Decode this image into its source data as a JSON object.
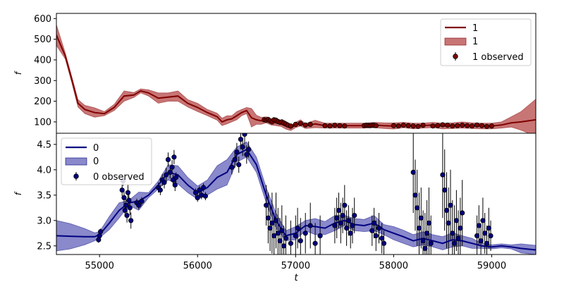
{
  "chart_data": [
    {
      "type": "line",
      "panel": "top",
      "xlabel": "",
      "ylabel": "f",
      "xlim": [
        54560,
        59450
      ],
      "ylim": [
        45,
        625
      ],
      "yticks": [
        100,
        200,
        300,
        400,
        500,
        600
      ],
      "legend_position": "upper right",
      "legend": [
        "1",
        "1",
        "1 observed"
      ],
      "colors": {
        "line": "#800000",
        "band": "#b03a3a",
        "band_alpha": 0.7,
        "points": "#800000"
      },
      "series": [
        {
          "name": "1",
          "role": "model-mean",
          "x": [
            54560,
            54650,
            54720,
            54780,
            54850,
            54950,
            55050,
            55150,
            55250,
            55350,
            55420,
            55500,
            55600,
            55700,
            55800,
            55900,
            56000,
            56100,
            56200,
            56250,
            56300,
            56350,
            56400,
            56450,
            56500,
            56550,
            56600,
            56650,
            56700,
            56750,
            56800,
            56850,
            56900,
            56950,
            57000,
            57050,
            57100,
            57200,
            57300,
            57400,
            57500,
            57600,
            57700,
            57800,
            57900,
            58000,
            58100,
            58200,
            58300,
            58400,
            58500,
            58600,
            58700,
            58800,
            58900,
            59000,
            59100,
            59200,
            59300,
            59450
          ],
          "y": [
            520,
            420,
            300,
            190,
            160,
            145,
            140,
            170,
            225,
            230,
            250,
            240,
            215,
            220,
            225,
            190,
            170,
            145,
            125,
            100,
            110,
            115,
            130,
            145,
            155,
            120,
            110,
            105,
            110,
            100,
            95,
            90,
            80,
            70,
            85,
            95,
            80,
            90,
            82,
            82,
            82,
            82,
            82,
            85,
            82,
            80,
            85,
            80,
            82,
            85,
            80,
            82,
            85,
            82,
            80,
            80,
            85,
            95,
            100,
            110
          ]
        },
        {
          "name": "1",
          "role": "uncertainty-band",
          "x": [
            54560,
            54650,
            54720,
            54780,
            54850,
            54950,
            55050,
            55150,
            55250,
            55350,
            55420,
            55500,
            55600,
            55700,
            55800,
            55900,
            56000,
            56100,
            56200,
            56250,
            56300,
            56350,
            56400,
            56450,
            56500,
            56550,
            56600,
            56650,
            56700,
            56750,
            56800,
            56850,
            56900,
            56950,
            57000,
            57050,
            57100,
            57200,
            57300,
            57400,
            57500,
            57600,
            57700,
            57800,
            57900,
            58000,
            58100,
            58200,
            58300,
            58400,
            58500,
            58600,
            58700,
            58800,
            58900,
            59000,
            59100,
            59200,
            59300,
            59450
          ],
          "lower": [
            470,
            405,
            285,
            172,
            140,
            122,
            130,
            155,
            200,
            218,
            240,
            225,
            190,
            200,
            200,
            172,
            150,
            130,
            108,
            82,
            90,
            100,
            110,
            130,
            140,
            75,
            88,
            88,
            95,
            85,
            82,
            78,
            65,
            58,
            72,
            80,
            68,
            72,
            70,
            70,
            70,
            70,
            70,
            72,
            68,
            65,
            72,
            66,
            70,
            72,
            66,
            68,
            70,
            68,
            66,
            66,
            70,
            75,
            60,
            30
          ],
          "upper": [
            570,
            435,
            315,
            208,
            180,
            168,
            150,
            185,
            250,
            242,
            260,
            255,
            240,
            240,
            250,
            208,
            190,
            160,
            142,
            118,
            130,
            130,
            150,
            160,
            170,
            165,
            132,
            122,
            125,
            115,
            108,
            102,
            95,
            82,
            98,
            110,
            92,
            108,
            94,
            94,
            94,
            94,
            94,
            98,
            96,
            95,
            98,
            94,
            94,
            98,
            94,
            96,
            100,
            96,
            94,
            94,
            100,
            125,
            150,
            210
          ]
        },
        {
          "name": "1 observed",
          "role": "observations",
          "x": [
            56680,
            56700,
            56720,
            56740,
            56760,
            56780,
            56800,
            56820,
            56840,
            56860,
            56880,
            56900,
            56920,
            56950,
            57000,
            57050,
            57100,
            57150,
            57300,
            57350,
            57400,
            57450,
            57500,
            57700,
            57720,
            57740,
            57760,
            57780,
            57800,
            57820,
            58000,
            58050,
            58100,
            58150,
            58200,
            58250,
            58300,
            58400,
            58450,
            58500,
            58550,
            58600,
            58650,
            58700,
            58750,
            58800,
            58850,
            58900,
            58950,
            59000
          ],
          "y": [
            110,
            108,
            112,
            105,
            100,
            110,
            108,
            102,
            98,
            100,
            95,
            90,
            85,
            80,
            88,
            92,
            85,
            88,
            82,
            80,
            84,
            82,
            80,
            82,
            84,
            83,
            82,
            84,
            83,
            82,
            82,
            80,
            84,
            82,
            80,
            78,
            84,
            80,
            82,
            86,
            84,
            80,
            82,
            84,
            82,
            80,
            85,
            82,
            78,
            80
          ]
        }
      ]
    },
    {
      "type": "line",
      "panel": "bottom",
      "xlabel": "t",
      "ylabel": "f",
      "xlim": [
        54560,
        59450
      ],
      "ylim": [
        2.33,
        4.72
      ],
      "xticks": [
        55000,
        56000,
        57000,
        58000,
        59000
      ],
      "yticks": [
        2.5,
        3.0,
        3.5,
        4.0,
        4.5
      ],
      "legend_position": "upper left",
      "legend": [
        "0",
        "0",
        "0 observed"
      ],
      "colors": {
        "line": "#000080",
        "band": "#3b3ba8",
        "band_alpha": 0.6,
        "points": "#000080",
        "errorbars": "#000000"
      },
      "series": [
        {
          "name": "0",
          "role": "model-mean",
          "x": [
            54560,
            54700,
            54850,
            54950,
            55000,
            55100,
            55200,
            55300,
            55400,
            55500,
            55600,
            55700,
            55800,
            55900,
            56000,
            56100,
            56200,
            56300,
            56400,
            56500,
            56600,
            56700,
            56800,
            56900,
            57000,
            57100,
            57200,
            57300,
            57400,
            57500,
            57600,
            57700,
            57800,
            57900,
            58000,
            58100,
            58200,
            58300,
            58400,
            58500,
            58600,
            58700,
            58800,
            58900,
            59000,
            59100,
            59200,
            59300,
            59450
          ],
          "y": [
            2.7,
            2.69,
            2.68,
            2.68,
            2.72,
            2.95,
            3.2,
            3.35,
            3.38,
            3.5,
            3.7,
            3.95,
            3.9,
            3.7,
            3.55,
            3.65,
            3.85,
            3.95,
            4.3,
            4.4,
            4.1,
            3.5,
            3.0,
            2.7,
            2.75,
            2.9,
            2.88,
            2.85,
            2.95,
            3.0,
            2.92,
            2.9,
            2.95,
            2.82,
            2.75,
            2.68,
            2.6,
            2.65,
            2.6,
            2.55,
            2.62,
            2.6,
            2.55,
            2.5,
            2.48,
            2.5,
            2.48,
            2.45,
            2.42
          ]
        },
        {
          "name": "0",
          "role": "uncertainty-band",
          "x": [
            54560,
            54700,
            54850,
            54950,
            55000,
            55100,
            55200,
            55300,
            55400,
            55500,
            55600,
            55700,
            55800,
            55900,
            56000,
            56100,
            56200,
            56300,
            56400,
            56500,
            56600,
            56700,
            56800,
            56900,
            57000,
            57100,
            57200,
            57300,
            57400,
            57500,
            57600,
            57700,
            57800,
            57900,
            58000,
            58100,
            58200,
            58300,
            58400,
            58500,
            58600,
            58700,
            58800,
            58900,
            59000,
            59100,
            59200,
            59300,
            59450
          ],
          "lower": [
            2.4,
            2.44,
            2.52,
            2.6,
            2.66,
            2.82,
            3.05,
            3.3,
            3.2,
            3.45,
            3.62,
            3.8,
            3.72,
            3.55,
            3.42,
            3.5,
            3.62,
            3.7,
            4.15,
            4.25,
            3.95,
            3.35,
            2.85,
            2.6,
            2.62,
            2.8,
            2.72,
            2.72,
            2.8,
            2.9,
            2.8,
            2.78,
            2.8,
            2.72,
            2.62,
            2.55,
            2.48,
            2.52,
            2.48,
            2.42,
            2.48,
            2.5,
            2.45,
            2.45,
            2.44,
            2.46,
            2.44,
            2.36,
            2.33
          ],
          "upper": [
            3.0,
            2.94,
            2.84,
            2.76,
            2.78,
            3.08,
            3.35,
            3.4,
            3.56,
            3.55,
            3.78,
            4.1,
            4.08,
            3.85,
            3.68,
            3.8,
            4.08,
            4.2,
            4.45,
            4.55,
            4.25,
            3.65,
            3.15,
            2.8,
            2.88,
            3.0,
            3.04,
            2.98,
            3.1,
            3.1,
            3.04,
            3.02,
            3.1,
            2.92,
            2.88,
            2.81,
            2.72,
            2.78,
            2.72,
            2.68,
            2.76,
            2.7,
            2.65,
            2.55,
            2.52,
            2.54,
            2.52,
            2.54,
            2.51
          ]
        },
        {
          "name": "0 observed",
          "role": "observations",
          "x": [
            54990,
            55000,
            55010,
            55230,
            55240,
            55250,
            55260,
            55270,
            55280,
            55290,
            55300,
            55310,
            55320,
            55380,
            55400,
            55430,
            55600,
            55620,
            55640,
            55660,
            55680,
            55700,
            55720,
            55740,
            55750,
            55760,
            55770,
            55780,
            55980,
            56000,
            56020,
            56040,
            56060,
            56080,
            56350,
            56380,
            56400,
            56420,
            56440,
            56460,
            56480,
            56500,
            56520,
            56700,
            56720,
            56740,
            56760,
            56780,
            56800,
            56820,
            56840,
            56860,
            56880,
            56900,
            56950,
            57000,
            57020,
            57050,
            57100,
            57150,
            57200,
            57250,
            57400,
            57420,
            57440,
            57460,
            57480,
            57500,
            57520,
            57540,
            57560,
            57580,
            57600,
            57780,
            57800,
            57820,
            57850,
            57880,
            57900,
            58200,
            58220,
            58240,
            58260,
            58280,
            58300,
            58320,
            58340,
            58360,
            58380,
            58500,
            58520,
            58540,
            58560,
            58580,
            58600,
            58620,
            58640,
            58660,
            58680,
            58700,
            58850,
            58870,
            58890,
            58910,
            58930,
            58950,
            58970,
            58990
          ],
          "y": [
            2.62,
            2.7,
            2.78,
            3.6,
            3.78,
            3.45,
            3.2,
            3.3,
            3.1,
            3.55,
            3.4,
            3.25,
            3.0,
            3.35,
            3.3,
            3.38,
            3.65,
            3.6,
            3.8,
            3.75,
            3.9,
            4.2,
            3.95,
            4.05,
            3.8,
            4.25,
            3.7,
            3.85,
            3.55,
            3.45,
            3.6,
            3.5,
            3.65,
            3.48,
            4.05,
            4.2,
            4.35,
            4.1,
            4.6,
            4.45,
            4.7,
            4.3,
            4.4,
            3.3,
            3.05,
            2.85,
            2.95,
            2.7,
            3.0,
            2.75,
            2.6,
            2.8,
            2.5,
            2.65,
            2.55,
            2.7,
            2.85,
            2.6,
            2.75,
            2.9,
            2.55,
            2.7,
            2.9,
            3.05,
            3.2,
            2.95,
            3.1,
            3.3,
            2.85,
            3.0,
            2.75,
            2.9,
            3.1,
            2.8,
            2.95,
            2.7,
            2.85,
            2.65,
            2.55,
            3.95,
            3.5,
            3.25,
            2.85,
            3.05,
            2.6,
            2.45,
            2.75,
            2.95,
            2.55,
            3.9,
            3.6,
            3.2,
            2.95,
            3.3,
            2.75,
            2.55,
            3.0,
            2.65,
            2.85,
            3.15,
            2.7,
            2.9,
            2.6,
            3.0,
            2.75,
            2.55,
            2.85,
            2.7
          ],
          "err": [
            0.06,
            0.08,
            0.06,
            0.12,
            0.1,
            0.14,
            0.12,
            0.12,
            0.14,
            0.16,
            0.12,
            0.14,
            0.16,
            0.08,
            0.08,
            0.08,
            0.1,
            0.1,
            0.12,
            0.12,
            0.14,
            0.14,
            0.12,
            0.14,
            0.1,
            0.14,
            0.12,
            0.1,
            0.08,
            0.08,
            0.08,
            0.08,
            0.08,
            0.08,
            0.14,
            0.16,
            0.18,
            0.16,
            0.2,
            0.18,
            0.2,
            0.18,
            0.16,
            0.4,
            0.5,
            0.45,
            0.6,
            0.45,
            0.55,
            0.5,
            0.45,
            0.5,
            0.4,
            0.45,
            0.45,
            0.4,
            0.4,
            0.45,
            0.4,
            0.45,
            0.4,
            0.4,
            0.35,
            0.4,
            0.35,
            0.4,
            0.35,
            0.4,
            0.35,
            0.3,
            0.3,
            0.35,
            0.35,
            0.3,
            0.3,
            0.3,
            0.3,
            0.3,
            0.25,
            0.8,
            0.7,
            0.75,
            0.7,
            0.6,
            0.6,
            0.7,
            0.65,
            0.7,
            0.55,
            0.85,
            0.8,
            0.75,
            0.7,
            0.7,
            0.65,
            0.75,
            0.6,
            0.55,
            0.6,
            0.65,
            0.4,
            0.4,
            0.35,
            0.45,
            0.4,
            0.35,
            0.4,
            0.3
          ]
        }
      ]
    }
  ]
}
